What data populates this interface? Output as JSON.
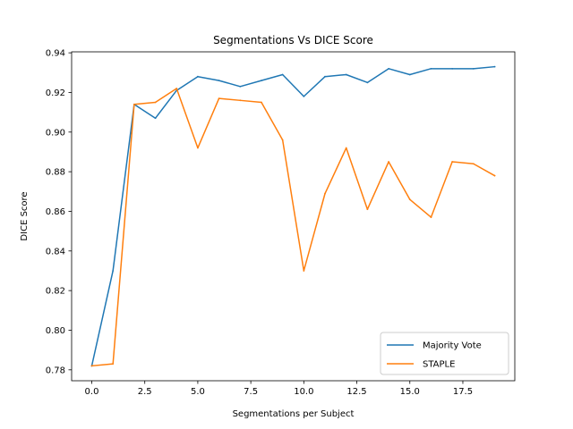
{
  "chart_data": {
    "type": "line",
    "title": "Segmentations Vs DICE Score",
    "xlabel": "Segmentations per Subject",
    "ylabel": "DICE Score",
    "xlim": [
      -0.95,
      19.95
    ],
    "ylim": [
      0.7745,
      0.9405
    ],
    "xticks": [
      0.0,
      2.5,
      5.0,
      7.5,
      10.0,
      12.5,
      15.0,
      17.5
    ],
    "xtick_labels": [
      "0.0",
      "2.5",
      "5.0",
      "7.5",
      "10.0",
      "12.5",
      "15.0",
      "17.5"
    ],
    "yticks": [
      0.78,
      0.8,
      0.82,
      0.84,
      0.86,
      0.88,
      0.9,
      0.92,
      0.94
    ],
    "ytick_labels": [
      "0.78",
      "0.80",
      "0.82",
      "0.84",
      "0.86",
      "0.88",
      "0.90",
      "0.92",
      "0.94"
    ],
    "grid": false,
    "legend_position": "bottom-right",
    "x": [
      0,
      1,
      2,
      3,
      4,
      5,
      6,
      7,
      8,
      9,
      10,
      11,
      12,
      13,
      14,
      15,
      16,
      17,
      18,
      19
    ],
    "series": [
      {
        "name": "Majority Vote",
        "color": "#1f77b4",
        "values": [
          0.782,
          0.83,
          0.914,
          0.907,
          0.921,
          0.928,
          0.926,
          0.923,
          0.926,
          0.929,
          0.918,
          0.928,
          0.929,
          0.925,
          0.932,
          0.929,
          0.932,
          0.932,
          0.932,
          0.933
        ]
      },
      {
        "name": "STAPLE",
        "color": "#ff7f0e",
        "values": [
          0.782,
          0.783,
          0.914,
          0.915,
          0.922,
          0.892,
          0.917,
          0.916,
          0.915,
          0.896,
          0.83,
          0.869,
          0.892,
          0.861,
          0.885,
          0.866,
          0.857,
          0.885,
          0.884,
          0.878
        ]
      }
    ]
  }
}
